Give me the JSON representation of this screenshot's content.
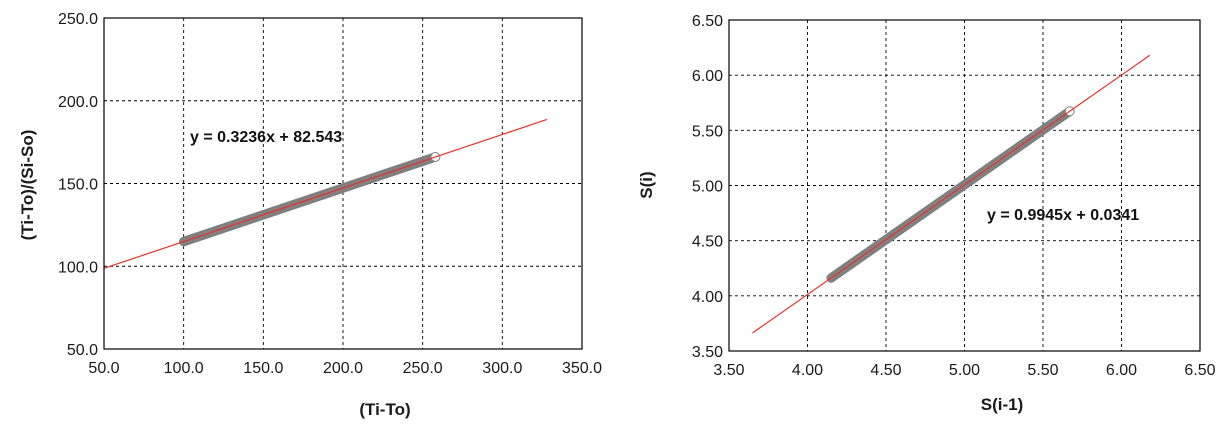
{
  "chart_data": [
    {
      "type": "scatter",
      "xlabel": "(Ti-To)",
      "ylabel": "(Ti-To)/(Si-So)",
      "xlim": [
        50,
        350
      ],
      "ylim": [
        50,
        250
      ],
      "x_ticks": [
        "50.0",
        "100.0",
        "150.0",
        "200.0",
        "250.0",
        "300.0",
        "350.0"
      ],
      "y_ticks": [
        "50.0",
        "100.0",
        "150.0",
        "200.0",
        "250.0"
      ],
      "grid": true,
      "series": [
        {
          "points_x_range": [
            100,
            258
          ],
          "points_y_range": [
            115,
            166
          ],
          "point_color": "#7f7f7f",
          "fit": {
            "slope": 0.3236,
            "intercept": 82.543,
            "x_range": [
              50,
              328
            ],
            "color": "#e8302a"
          },
          "equation_label": "y = 0.3236x + 82.543"
        }
      ]
    },
    {
      "type": "scatter",
      "xlabel": "S(i-1)",
      "ylabel": "S(i)",
      "xlim": [
        3.5,
        6.5
      ],
      "ylim": [
        3.5,
        6.5
      ],
      "x_ticks": [
        "3.50",
        "4.00",
        "4.50",
        "5.00",
        "5.50",
        "6.00",
        "6.50"
      ],
      "y_ticks": [
        "3.50",
        "4.00",
        "4.50",
        "5.00",
        "5.50",
        "6.00",
        "6.50"
      ],
      "grid": true,
      "series": [
        {
          "points_x_range": [
            4.15,
            5.67
          ],
          "points_y_range": [
            4.16,
            5.67
          ],
          "point_color": "#7f7f7f",
          "fit": {
            "slope": 0.9945,
            "intercept": 0.0341,
            "x_range": [
              3.65,
              6.18
            ],
            "color": "#e8302a"
          },
          "equation_label": "y = 0.9945x + 0.0341"
        }
      ]
    }
  ]
}
